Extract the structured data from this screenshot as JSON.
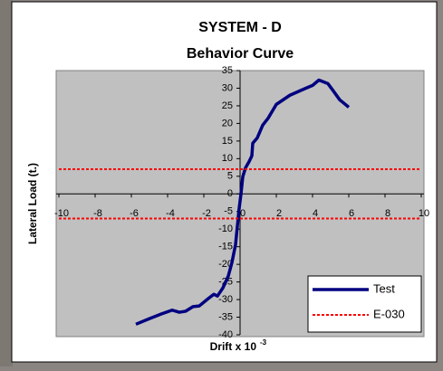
{
  "chart_data": {
    "type": "line",
    "title": "SYSTEM - D",
    "subtitle": "Behavior Curve",
    "ylabel": "Lateral Load (t.)",
    "xlabel": "Drift x 10",
    "xlabel_exponent": "-3",
    "xlim": [
      -10,
      10
    ],
    "xticks": [
      -10,
      -8,
      -6,
      -4,
      -2,
      0,
      2,
      4,
      6,
      8,
      10
    ],
    "ylim": [
      -40,
      35
    ],
    "yticks": [
      -40,
      -35,
      -30,
      -25,
      -20,
      -15,
      -10,
      -5,
      0,
      5,
      10,
      15,
      20,
      25,
      30,
      35
    ],
    "legend": "lower right",
    "series": [
      {
        "name": "Test",
        "color": "#000080",
        "style": "solid",
        "x": [
          -5.75,
          -5,
          -4.35,
          -3.75,
          -3.35,
          -3,
          -2.6,
          -2.25,
          -1.75,
          -1.45,
          -1.25,
          -0.95,
          -0.65,
          -0.45,
          -0.25,
          -0.15,
          -0.05,
          0.05,
          0.15,
          0.3,
          0.5,
          0.65,
          0.7,
          0.95,
          1.25,
          1.55,
          2,
          2.75,
          3.5,
          4,
          4.35,
          4.85,
          5.15,
          5.5,
          6
        ],
        "values": [
          -37,
          -35.4,
          -34.1,
          -33,
          -33.6,
          -33.3,
          -32,
          -31.8,
          -29.7,
          -28.5,
          -29,
          -26.7,
          -23.3,
          -19.5,
          -14.4,
          -9.2,
          -4.1,
          0,
          4.9,
          7.4,
          9.2,
          10.8,
          14.4,
          15.9,
          19.5,
          21.5,
          25.4,
          28,
          29.7,
          30.8,
          32.3,
          31.3,
          29.2,
          26.7,
          24.6
        ]
      },
      {
        "name": "E-030",
        "color": "#ff0000",
        "style": "dotted",
        "x": [
          -10,
          10,
          0,
          -10,
          10
        ],
        "values": [
          7,
          7,
          null,
          -7,
          -7
        ]
      }
    ]
  }
}
